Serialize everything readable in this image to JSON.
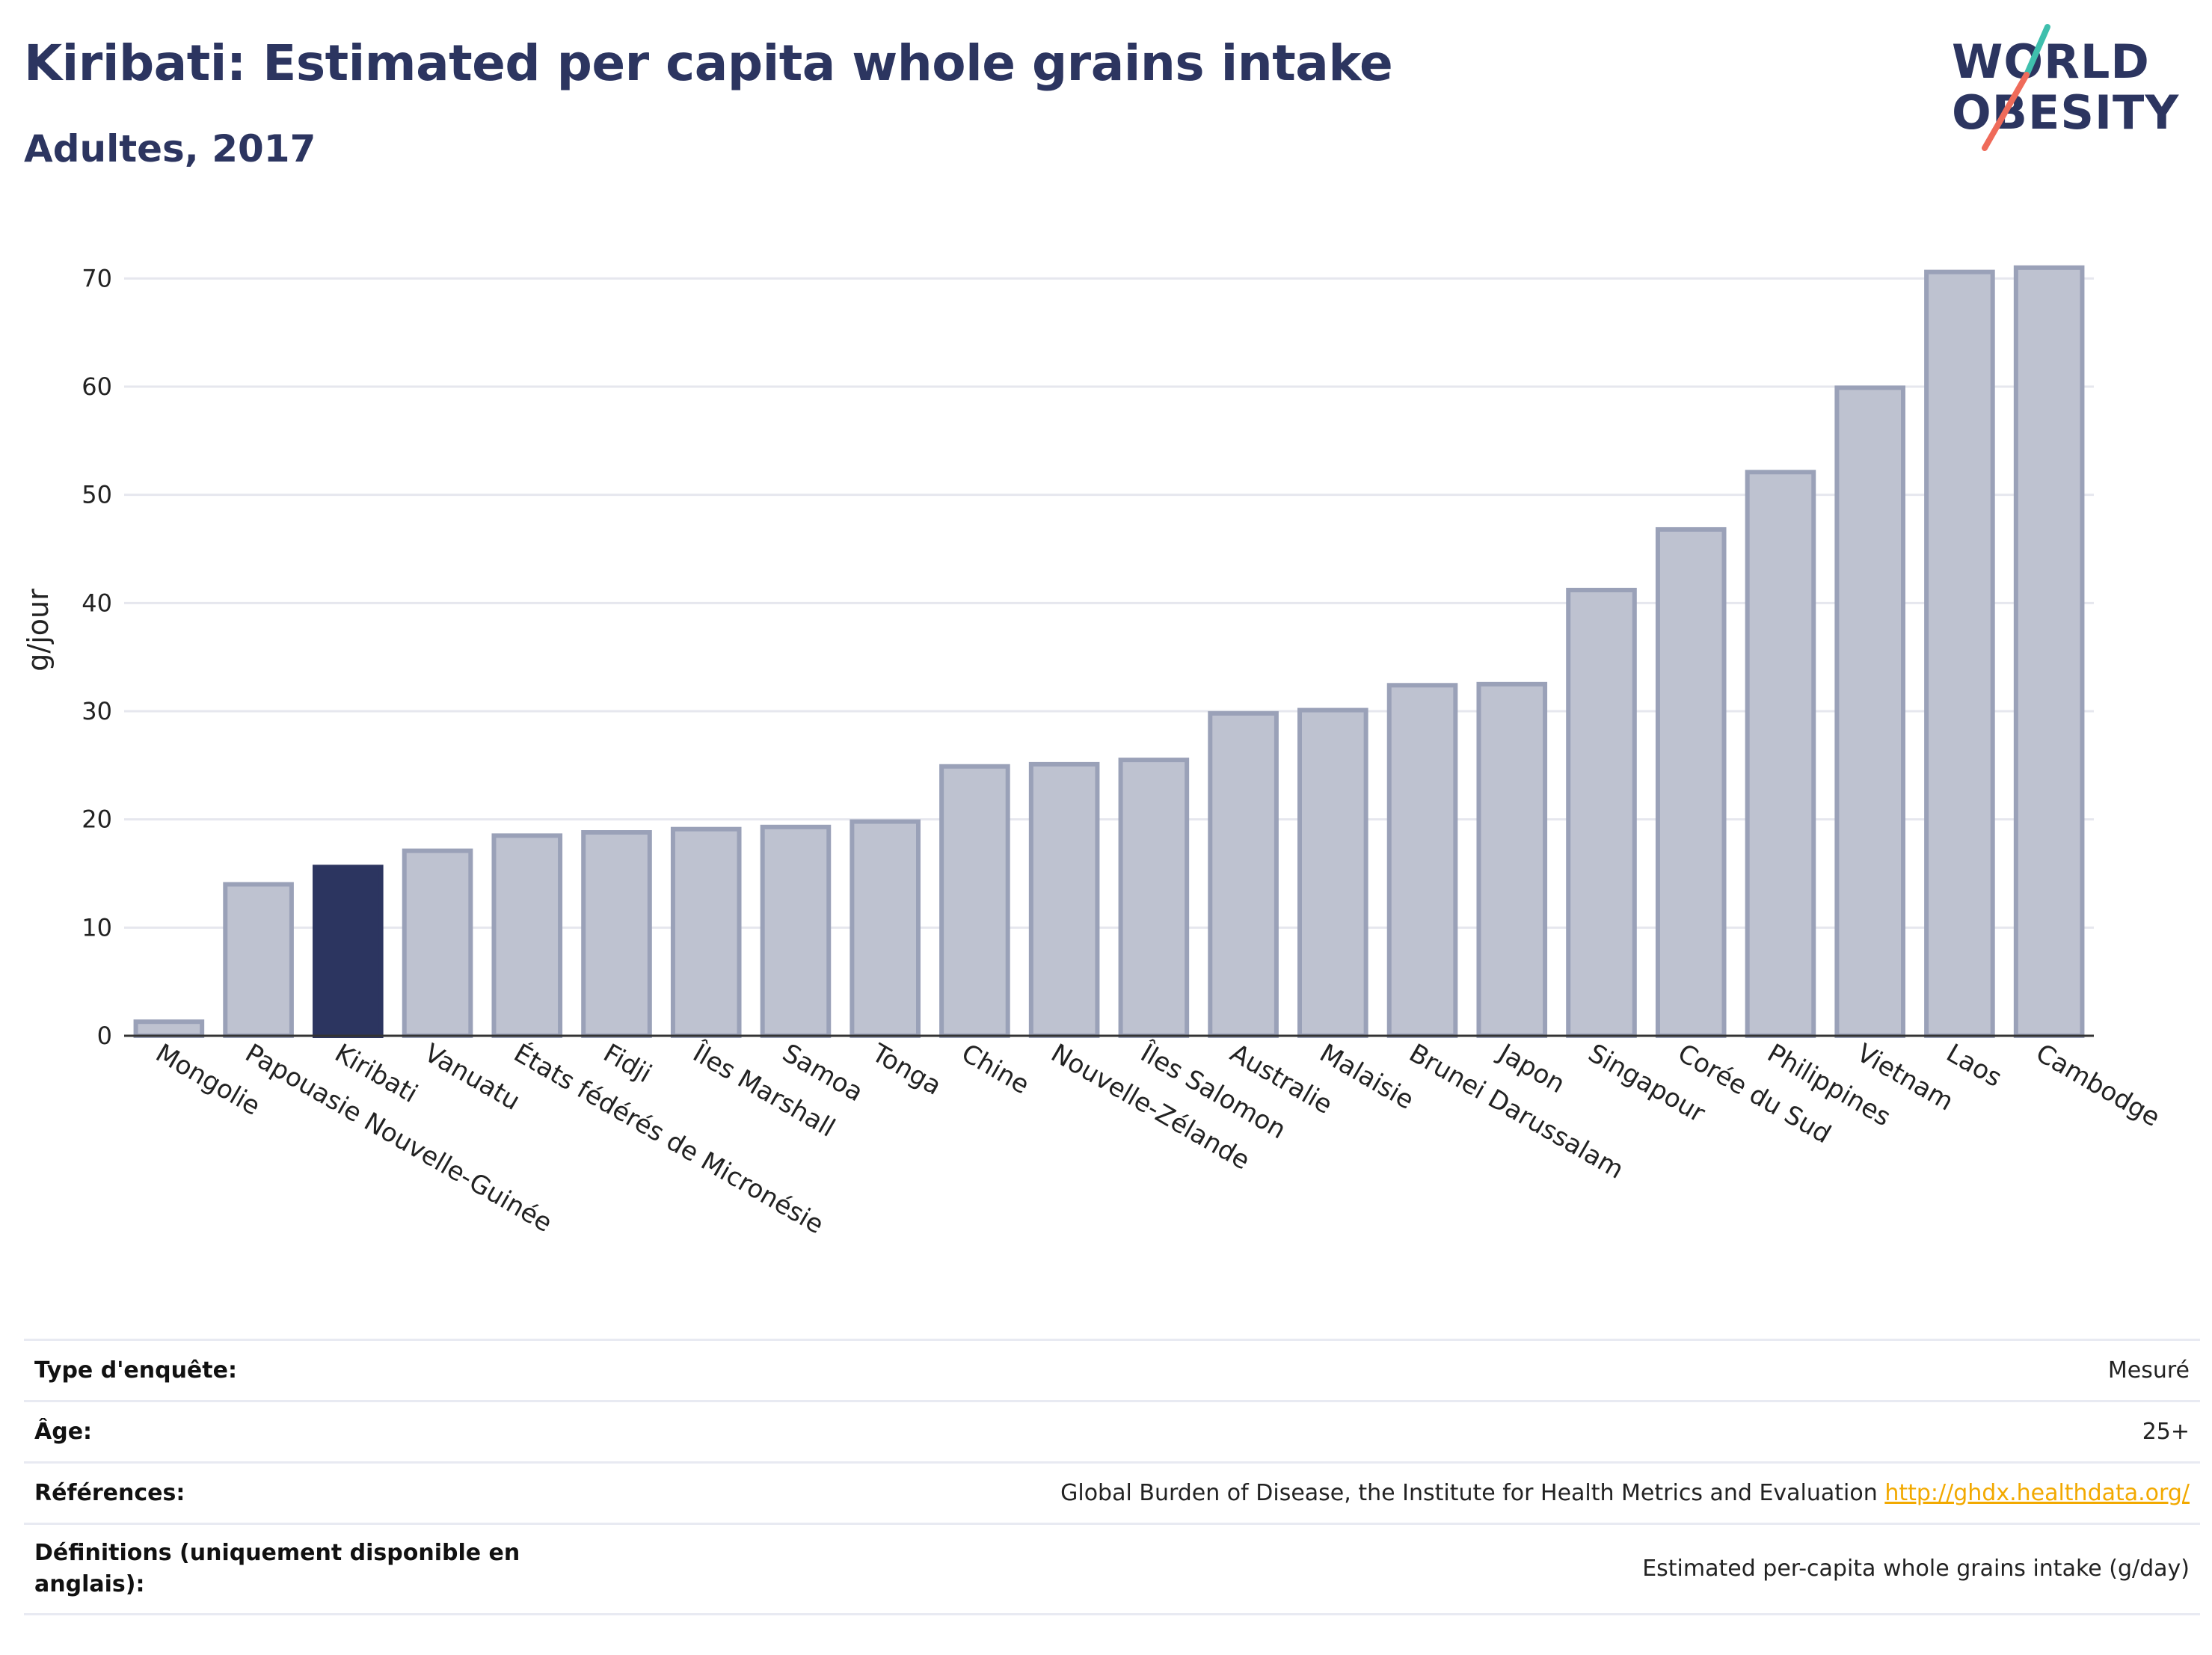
{
  "header": {
    "title": "Kiribati: Estimated per capita whole grains intake",
    "subtitle": "Adultes, 2017"
  },
  "logo": {
    "line1": "WORLD",
    "line2": "OBESITY",
    "brand_color": "#2c3560",
    "slash_colors": [
      "#3fbfad",
      "#ef6b5a"
    ]
  },
  "colors": {
    "highlight": "#2c3560",
    "bar": "#bec2d0",
    "bar_border": "#9aa1b8",
    "link": "#f2a900"
  },
  "chart_data": {
    "type": "bar",
    "title": "Kiribati: Estimated per capita whole grains intake",
    "subtitle": "Adultes, 2017",
    "xlabel": "",
    "ylabel": "g/jour",
    "ylim": [
      0,
      75
    ],
    "yticks": [
      0,
      10,
      20,
      30,
      40,
      50,
      60,
      70
    ],
    "grid": true,
    "highlight_category": "Kiribati",
    "categories": [
      "Mongolie",
      "Papouasie Nouvelle-Guinée",
      "Kiribati",
      "Vanuatu",
      "États fédérés de Micronésie",
      "Fidji",
      "Îles Marshall",
      "Samoa",
      "Tonga",
      "Chine",
      "Nouvelle-Zélande",
      "Îles Salomon",
      "Australie",
      "Malaisie",
      "Brunei Darussalam",
      "Japon",
      "Singapour",
      "Corée du Sud",
      "Philippines",
      "Vietnam",
      "Laos",
      "Cambodge"
    ],
    "values": [
      1.3,
      14.0,
      15.6,
      17.1,
      18.5,
      18.8,
      19.1,
      19.3,
      19.8,
      24.9,
      25.1,
      25.5,
      29.8,
      30.1,
      32.4,
      32.5,
      41.2,
      46.8,
      52.1,
      59.9,
      70.6,
      71.0
    ]
  },
  "meta": {
    "rows": [
      {
        "key": "Type d'enquête:",
        "value": "Mesuré"
      },
      {
        "key": "Âge:",
        "value": "25+"
      },
      {
        "key": "Références:",
        "value": "Global Burden of Disease, the Institute for Health Metrics and Evaluation",
        "link": "http://ghdx.healthdata.org/"
      },
      {
        "key": "Définitions (uniquement disponible en anglais):",
        "value": "Estimated per-capita whole grains intake (g/day)"
      }
    ]
  }
}
